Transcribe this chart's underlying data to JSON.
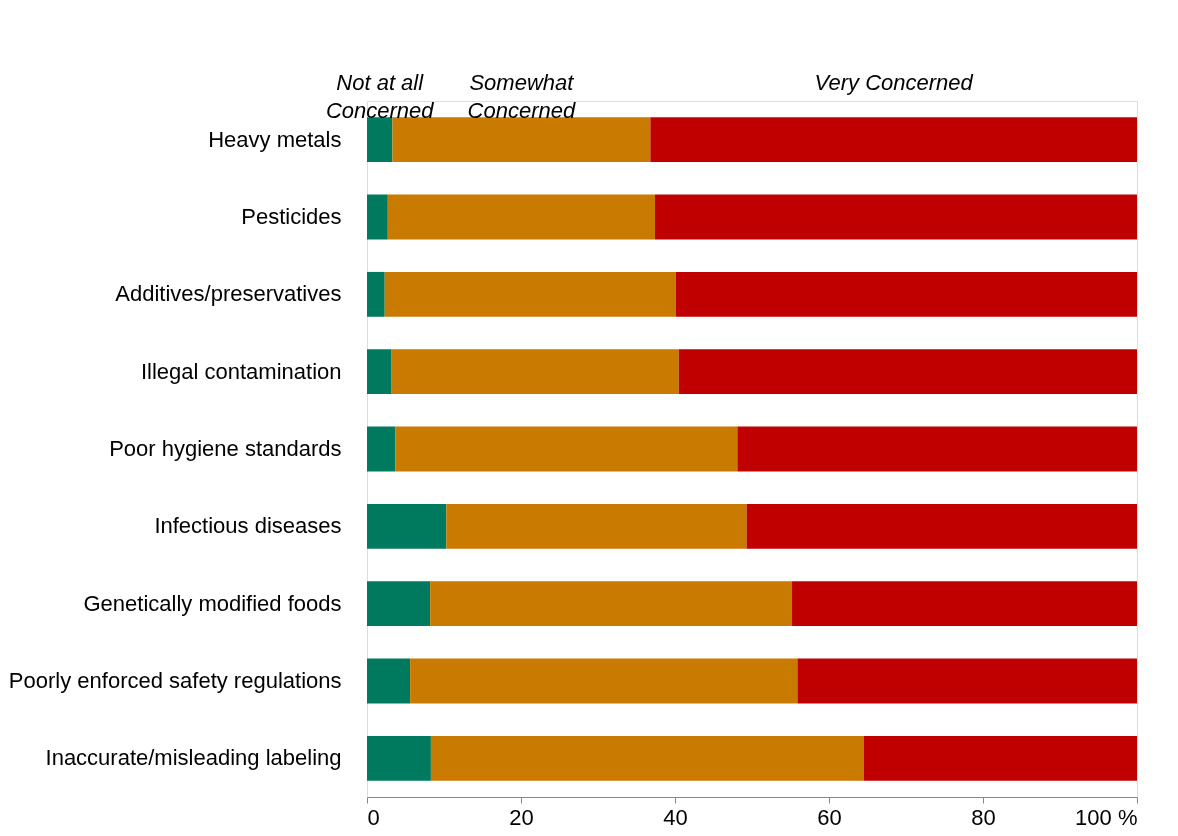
{
  "chart_data": {
    "type": "bar",
    "orientation": "horizontal",
    "stacked": true,
    "grid": false,
    "categories": [
      "Heavy metals",
      "Pesticides",
      "Additives/preservatives",
      "Illegal contamination",
      "Poor hygiene standards",
      "Infectious diseases",
      "Genetically modified foods",
      "Poorly enforced safety regulations",
      "Inaccurate/misleading labeling"
    ],
    "series": [
      {
        "name": "Not at all\nConcerned",
        "color": "#007a5e",
        "values": [
          3.3,
          2.7,
          2.3,
          3.2,
          3.7,
          10.3,
          8.2,
          5.6,
          8.3
        ]
      },
      {
        "name": "Somewhat\nConcerned",
        "color": "#c97a00",
        "values": [
          33.5,
          34.7,
          37.8,
          37.3,
          44.4,
          39.0,
          47.0,
          50.3,
          56.2
        ]
      },
      {
        "name": "Very Concerned",
        "color": "#c00000",
        "values": [
          63.2,
          62.6,
          59.9,
          59.5,
          51.9,
          50.7,
          44.8,
          44.1,
          35.5
        ]
      }
    ],
    "xlim": [
      0,
      100
    ],
    "xticks": [
      0,
      20,
      40,
      60,
      80,
      {
        "value": 100,
        "label": "100 %"
      }
    ]
  }
}
